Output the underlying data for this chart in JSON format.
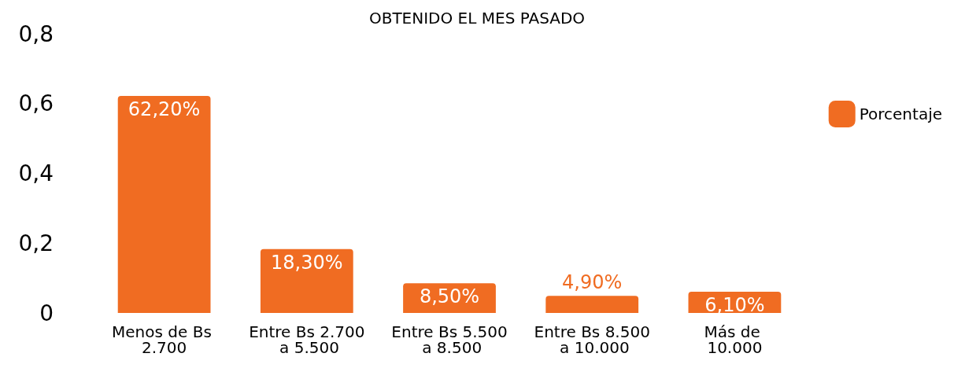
{
  "chart_data": {
    "type": "bar",
    "title": "OBTENIDO EL MES PASADO",
    "categories": [
      "Menos de Bs 2.700",
      "Entre Bs 2.700 a 5.500",
      "Entre Bs 5.500 a 8.500",
      "Entre Bs 8.500 a 10.000",
      "Más de 10.000"
    ],
    "series": [
      {
        "name": "Porcentaje",
        "color": "#f06c22",
        "values": [
          0.622,
          0.183,
          0.085,
          0.049,
          0.061
        ],
        "value_labels": [
          "62,20%",
          "18,30%",
          "8,50%",
          "4,90%",
          "6,10%"
        ]
      }
    ],
    "ylim": [
      0,
      0.8
    ],
    "yticks": [
      {
        "value": 0,
        "label": "0"
      },
      {
        "value": 0.2,
        "label": "0,2"
      },
      {
        "value": 0.4,
        "label": "0,4"
      },
      {
        "value": 0.6,
        "label": "0,6"
      },
      {
        "value": 0.8,
        "label": "0,8"
      }
    ],
    "grid": false,
    "legend": "right"
  }
}
